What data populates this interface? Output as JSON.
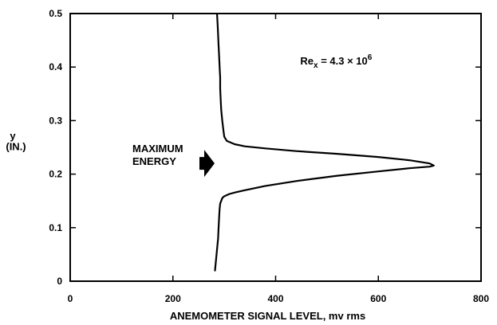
{
  "chart_data": {
    "type": "line",
    "title": "",
    "xlabel": "ANEMOMETER SIGNAL LEVEL, mv rms",
    "ylabel": "y",
    "ylabel_unit": "(IN.)",
    "xlim": [
      0,
      800
    ],
    "ylim": [
      0,
      0.5
    ],
    "x_ticks": [
      0,
      200,
      400,
      600,
      800
    ],
    "x_tick_labels": [
      "0",
      "200",
      "400",
      "600",
      "800"
    ],
    "y_ticks": [
      0,
      0.1,
      0.2,
      0.3,
      0.4,
      0.5
    ],
    "y_tick_labels": [
      "0",
      "0.1",
      "0.2",
      "0.3",
      "0.4",
      "0.5"
    ],
    "grid": false,
    "series": [
      {
        "color": "#000000",
        "x": [
          282,
          284,
          286,
          288,
          289,
          290,
          291,
          292,
          294,
          296,
          299,
          303,
          310,
          322,
          340,
          380,
          440,
          520,
          600,
          660,
          700,
          708,
          700,
          660,
          600,
          520,
          440,
          380,
          340,
          320,
          305,
          300,
          298,
          296,
          294,
          293,
          292,
          292,
          291,
          290,
          289,
          288,
          287,
          286
        ],
        "y": [
          0.02,
          0.04,
          0.06,
          0.08,
          0.1,
          0.12,
          0.135,
          0.145,
          0.15,
          0.155,
          0.158,
          0.16,
          0.163,
          0.166,
          0.17,
          0.178,
          0.187,
          0.197,
          0.205,
          0.211,
          0.214,
          0.216,
          0.22,
          0.226,
          0.232,
          0.238,
          0.243,
          0.248,
          0.252,
          0.256,
          0.262,
          0.27,
          0.285,
          0.3,
          0.32,
          0.34,
          0.36,
          0.38,
          0.4,
          0.42,
          0.44,
          0.46,
          0.48,
          0.498
        ]
      }
    ],
    "annotations": {
      "reynolds_base": "Re",
      "reynolds_sub": "x",
      "reynolds_value": " = 4.3 × 10",
      "reynolds_exp": "6",
      "energy_line1": "MAXIMUM",
      "energy_line2": "ENERGY",
      "energy_arrow_y": 0.22
    },
    "colors": {
      "line": "#000000",
      "axes": "#000000",
      "background": "#ffffff"
    }
  }
}
